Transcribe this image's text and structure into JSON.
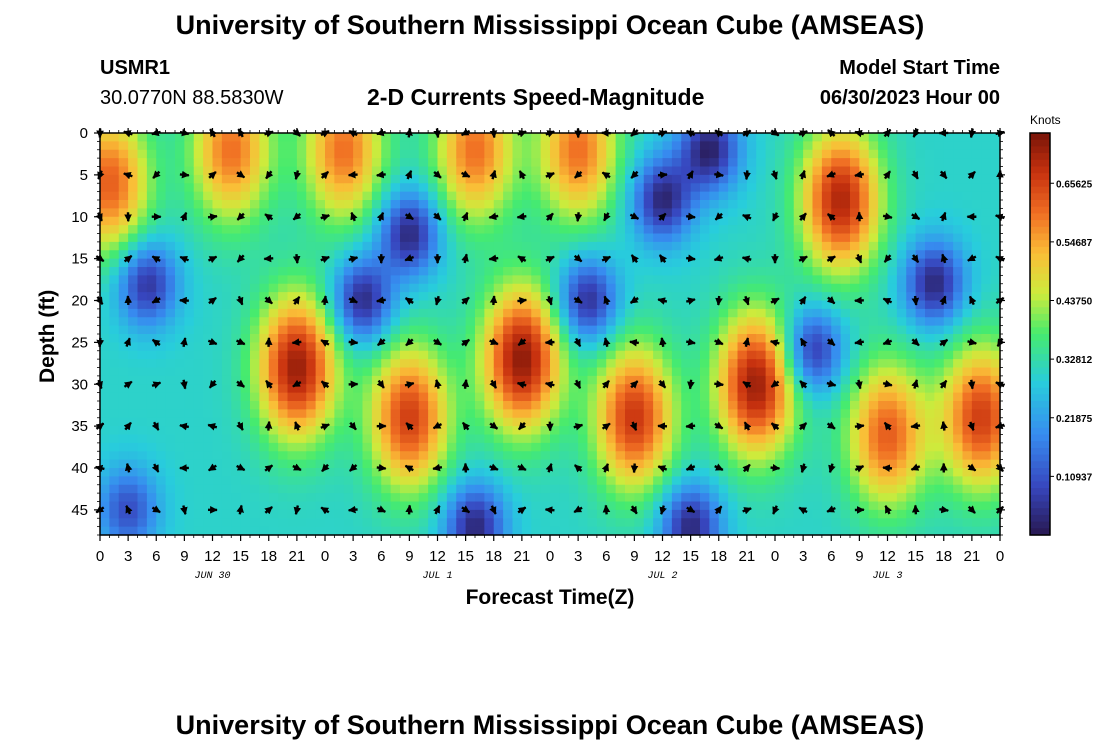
{
  "header": {
    "title": "University of Southern Mississippi Ocean Cube (AMSEAS)",
    "station": "USMR1",
    "coords": "30.0770N  88.5830W",
    "subtitle": "2-D Currents Speed-Magnitude",
    "model_start_label": "Model Start Time",
    "model_start_value": "06/30/2023 Hour 00"
  },
  "footer": {
    "title": "University of Southern Mississippi Ocean Cube (AMSEAS)"
  },
  "chart_data": {
    "type": "heatmap",
    "title": "2-D Currents Speed-Magnitude",
    "xlabel": "Forecast Time(Z)",
    "ylabel": "Depth (ft)",
    "xlim": [
      0,
      96
    ],
    "ylim": [
      0,
      48
    ],
    "x_tick_labels": [
      "0",
      "3",
      "6",
      "9",
      "12",
      "15",
      "18",
      "21",
      "0",
      "3",
      "6",
      "9",
      "12",
      "15",
      "18",
      "21",
      "0",
      "3",
      "6",
      "9",
      "12",
      "15",
      "18",
      "21",
      "0",
      "3",
      "6",
      "9",
      "12",
      "15",
      "18",
      "21",
      "0"
    ],
    "y_tick_labels": [
      "0",
      "5",
      "10",
      "15",
      "20",
      "25",
      "30",
      "35",
      "40",
      "45"
    ],
    "date_labels": [
      {
        "label": "JUN 30",
        "hour": 12
      },
      {
        "label": "JUL 1",
        "hour": 36
      },
      {
        "label": "JUL 2",
        "hour": 60
      },
      {
        "label": "JUL 3",
        "hour": 84
      }
    ],
    "colorbar": {
      "unit": "Knots",
      "min": 0.0,
      "max": 0.75,
      "tick_labels": [
        "0.65625",
        "0.54687",
        "0.43750",
        "0.32812",
        "0.21875",
        "0.10937"
      ],
      "tick_values": [
        0.65625,
        0.546875,
        0.4375,
        0.328125,
        0.21875,
        0.109375
      ]
    },
    "high_speed_cores": [
      {
        "hour": 21,
        "depth": 28,
        "peak_knots": 0.72
      },
      {
        "hour": 45,
        "depth": 27,
        "peak_knots": 0.73
      },
      {
        "hour": 70,
        "depth": 30,
        "peak_knots": 0.72
      },
      {
        "hour": 33,
        "depth": 34,
        "peak_knots": 0.66
      },
      {
        "hour": 57,
        "depth": 34,
        "peak_knots": 0.67
      },
      {
        "hour": 94,
        "depth": 34,
        "peak_knots": 0.66
      },
      {
        "hour": 84,
        "depth": 36,
        "peak_knots": 0.62
      },
      {
        "hour": 79,
        "depth": 8,
        "peak_knots": 0.7
      },
      {
        "hour": 1,
        "depth": 6,
        "peak_knots": 0.62
      },
      {
        "hour": 14,
        "depth": 2,
        "peak_knots": 0.6
      },
      {
        "hour": 26,
        "depth": 2,
        "peak_knots": 0.6
      },
      {
        "hour": 40,
        "depth": 2,
        "peak_knots": 0.6
      },
      {
        "hour": 51,
        "depth": 2,
        "peak_knots": 0.6
      }
    ],
    "low_speed_zones": [
      {
        "hour": 5,
        "depth": 18,
        "knots": 0.05
      },
      {
        "hour": 33,
        "depth": 12,
        "knots": 0.03
      },
      {
        "hour": 28,
        "depth": 20,
        "knots": 0.03
      },
      {
        "hour": 52,
        "depth": 20,
        "knots": 0.04
      },
      {
        "hour": 60,
        "depth": 8,
        "knots": 0.03
      },
      {
        "hour": 65,
        "depth": 2,
        "knots": 0.02
      },
      {
        "hour": 89,
        "depth": 18,
        "knots": 0.03
      },
      {
        "hour": 76,
        "depth": 26,
        "knots": 0.05
      },
      {
        "hour": 40,
        "depth": 47,
        "knots": 0.03
      },
      {
        "hour": 63,
        "depth": 47,
        "knots": 0.03
      },
      {
        "hour": 3,
        "depth": 45,
        "knots": 0.1
      }
    ]
  }
}
